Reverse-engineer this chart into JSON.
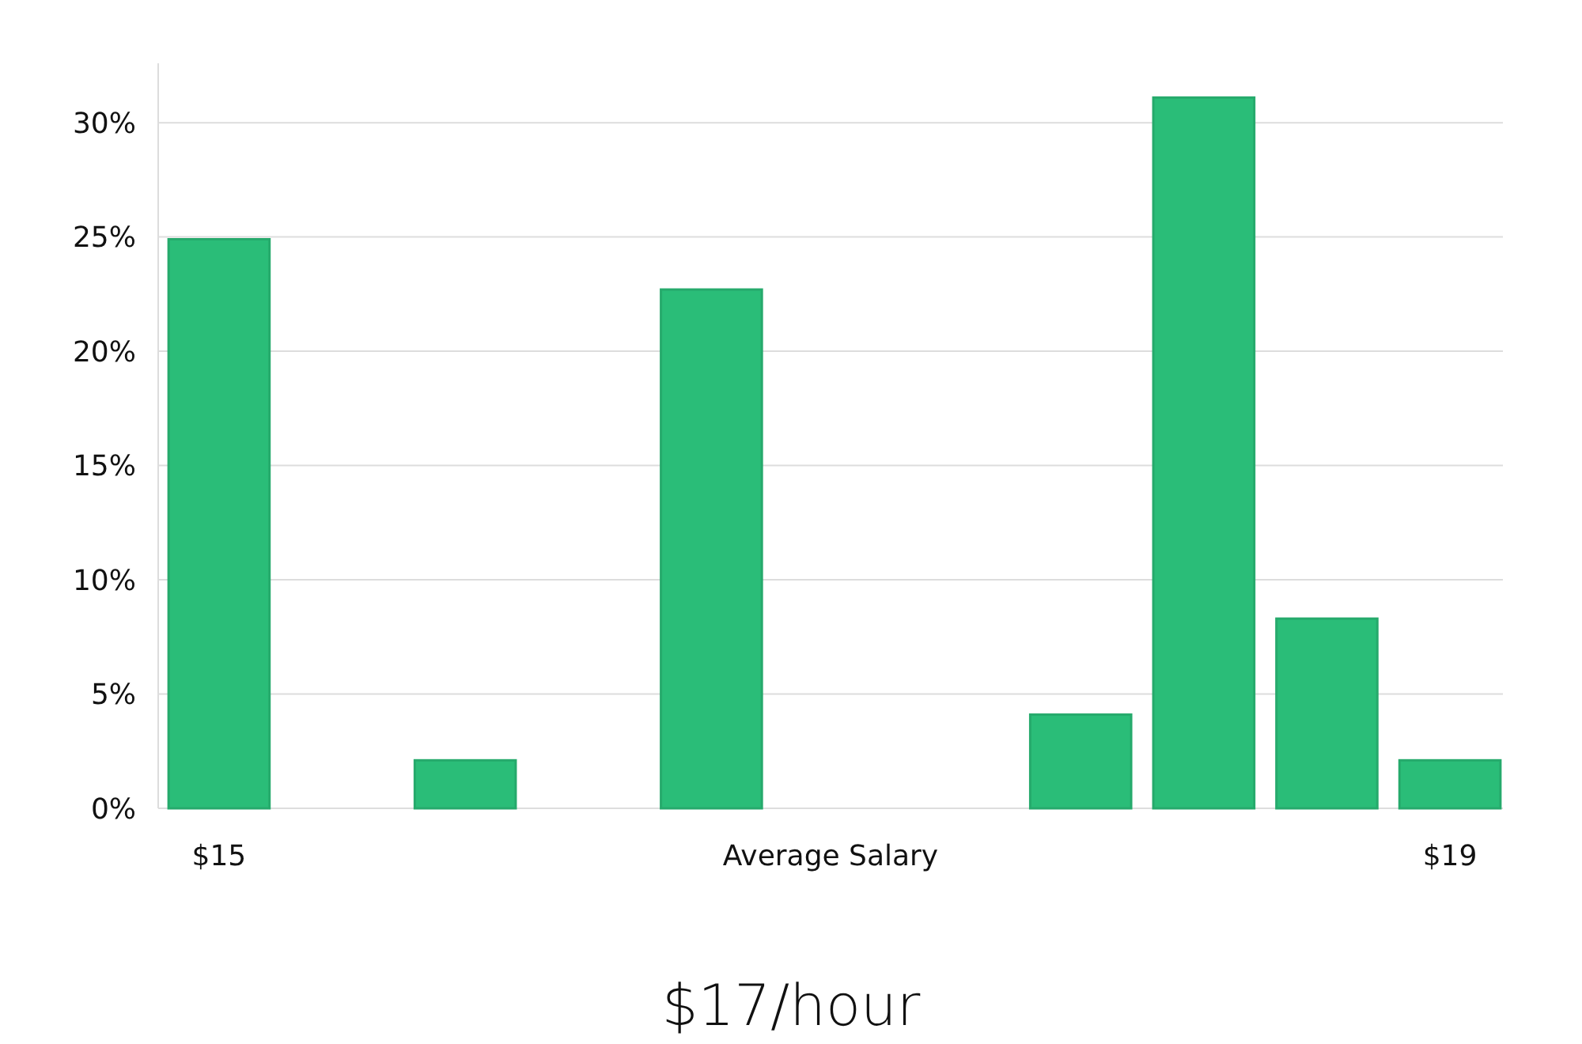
{
  "chart_data": {
    "type": "bar",
    "subtitle": "$17/hour",
    "xlabel": "Average Salary",
    "categories": [
      "$15",
      null,
      null,
      null,
      null,
      null,
      null,
      null,
      null,
      null,
      "$19"
    ],
    "values": [
      24.9,
      0,
      2.1,
      0,
      22.7,
      0,
      0,
      4.1,
      31.1,
      8.3,
      2.1
    ],
    "color": "#2abd78",
    "ylim": [
      0,
      32.6
    ],
    "yticks": [
      {
        "value": 0,
        "label": "0%"
      },
      {
        "value": 5,
        "label": "5%"
      },
      {
        "value": 10,
        "label": "10%"
      },
      {
        "value": 15,
        "label": "15%"
      },
      {
        "value": 20,
        "label": "20%"
      },
      {
        "value": 25,
        "label": "25%"
      },
      {
        "value": 30,
        "label": "30%"
      }
    ],
    "grid": "y"
  }
}
